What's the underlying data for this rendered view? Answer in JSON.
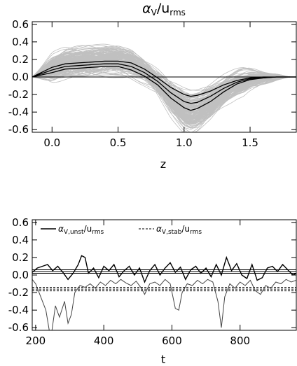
{
  "chart_data": [
    {
      "type": "line",
      "title_symbol": "α",
      "title_symbol_sub": "V",
      "title_rest": "/u",
      "title_rest_sub": "rms",
      "xlabel": "z",
      "xlim": [
        -0.15,
        1.85
      ],
      "ylim": [
        -0.63,
        0.63
      ],
      "x_ticks": [
        0.0,
        0.5,
        1.0,
        1.5
      ],
      "x_tick_labels": [
        "0.0",
        "0.5",
        "1.0",
        "1.5"
      ],
      "y_ticks": [
        -0.6,
        -0.4,
        -0.2,
        0.0,
        0.2,
        0.4,
        0.6
      ],
      "y_tick_labels": [
        "-0.6",
        "-0.4",
        "-0.2",
        "0.0",
        "0.2",
        "0.4",
        "0.6"
      ],
      "ensemble_color": "#c0c0c0",
      "line_color": "#000000",
      "mean_profile": {
        "z": [
          -0.15,
          0.0,
          0.1,
          0.2,
          0.3,
          0.4,
          0.5,
          0.6,
          0.7,
          0.8,
          0.9,
          1.0,
          1.05,
          1.1,
          1.2,
          1.3,
          1.4,
          1.5,
          1.6,
          1.7,
          1.85
        ],
        "mean": [
          0.0,
          0.08,
          0.12,
          0.13,
          0.14,
          0.15,
          0.15,
          0.12,
          0.05,
          -0.05,
          -0.18,
          -0.28,
          -0.3,
          -0.29,
          -0.22,
          -0.13,
          -0.06,
          -0.02,
          -0.01,
          0.0,
          0.0
        ],
        "upper": [
          0.0,
          0.11,
          0.15,
          0.16,
          0.17,
          0.18,
          0.18,
          0.16,
          0.09,
          -0.01,
          -0.12,
          -0.2,
          -0.22,
          -0.21,
          -0.16,
          -0.09,
          -0.04,
          -0.01,
          0.0,
          0.0,
          0.0
        ],
        "lower": [
          0.0,
          0.05,
          0.09,
          0.1,
          0.11,
          0.12,
          0.12,
          0.08,
          0.01,
          -0.09,
          -0.24,
          -0.35,
          -0.38,
          -0.36,
          -0.28,
          -0.17,
          -0.08,
          -0.03,
          -0.01,
          0.0,
          0.0
        ]
      }
    },
    {
      "type": "line",
      "xlabel": "t",
      "xlim": [
        190,
        965
      ],
      "ylim": [
        -0.63,
        0.63
      ],
      "x_ticks": [
        200,
        400,
        600,
        800
      ],
      "x_tick_labels": [
        "200",
        "400",
        "600",
        "800"
      ],
      "y_ticks": [
        -0.6,
        -0.4,
        -0.2,
        0.0,
        0.2,
        0.4,
        0.6
      ],
      "y_tick_labels": [
        "-0.6",
        "-0.4",
        "-0.2",
        "0.0",
        "0.2",
        "0.4",
        "0.6"
      ],
      "series": [
        {
          "name_symbol": "α",
          "name_sub1": "V,unst",
          "name_rest": "/u",
          "name_sub2": "rms",
          "style": "solid",
          "t": [
            190,
            205,
            220,
            235,
            250,
            265,
            280,
            295,
            310,
            325,
            335,
            345,
            355,
            370,
            385,
            400,
            415,
            430,
            445,
            460,
            475,
            490,
            505,
            520,
            535,
            550,
            565,
            580,
            595,
            610,
            625,
            640,
            655,
            670,
            685,
            700,
            715,
            730,
            745,
            760,
            775,
            790,
            805,
            820,
            835,
            850,
            865,
            880,
            895,
            910,
            925,
            940,
            955,
            965
          ],
          "values": [
            0.03,
            0.08,
            0.1,
            0.12,
            0.05,
            0.1,
            0.03,
            -0.05,
            0.02,
            0.12,
            0.22,
            0.2,
            0.02,
            0.08,
            -0.03,
            0.1,
            0.05,
            0.12,
            -0.02,
            0.05,
            0.1,
            0.0,
            0.08,
            -0.08,
            0.05,
            0.12,
            0.0,
            0.08,
            0.14,
            0.03,
            0.09,
            -0.05,
            0.06,
            0.1,
            0.02,
            0.08,
            -0.02,
            0.12,
            0.0,
            0.2,
            0.05,
            0.13,
            0.0,
            -0.04,
            0.12,
            -0.06,
            -0.03,
            0.08,
            0.1,
            0.04,
            0.12,
            0.06,
            0.0,
            0.02
          ],
          "mean": 0.04,
          "band": [
            0.02,
            0.06
          ]
        },
        {
          "name_symbol": "α",
          "name_sub1": "V,stab",
          "name_rest": "/u",
          "name_sub2": "rms",
          "style": "dashed",
          "t": [
            190,
            200,
            215,
            230,
            240,
            248,
            258,
            270,
            285,
            295,
            305,
            315,
            330,
            345,
            360,
            375,
            390,
            405,
            420,
            435,
            450,
            465,
            480,
            495,
            510,
            520,
            535,
            550,
            565,
            580,
            595,
            610,
            620,
            630,
            645,
            660,
            675,
            690,
            705,
            720,
            735,
            745,
            755,
            770,
            785,
            800,
            815,
            830,
            845,
            860,
            875,
            890,
            905,
            920,
            935,
            950,
            965
          ],
          "values": [
            -0.05,
            -0.1,
            -0.25,
            -0.4,
            -0.63,
            -0.63,
            -0.35,
            -0.48,
            -0.3,
            -0.55,
            -0.45,
            -0.2,
            -0.12,
            -0.14,
            -0.1,
            -0.15,
            -0.08,
            -0.12,
            -0.06,
            -0.1,
            -0.05,
            -0.09,
            -0.12,
            -0.07,
            -0.15,
            -0.22,
            -0.1,
            -0.08,
            -0.12,
            -0.05,
            -0.1,
            -0.38,
            -0.4,
            -0.2,
            -0.1,
            -0.12,
            -0.06,
            -0.1,
            -0.05,
            -0.08,
            -0.3,
            -0.6,
            -0.25,
            -0.1,
            -0.15,
            -0.08,
            -0.12,
            -0.06,
            -0.18,
            -0.22,
            -0.12,
            -0.15,
            -0.08,
            -0.1,
            -0.05,
            -0.08,
            -0.06
          ],
          "mean": -0.16,
          "band": [
            -0.14,
            -0.18
          ]
        }
      ]
    }
  ]
}
